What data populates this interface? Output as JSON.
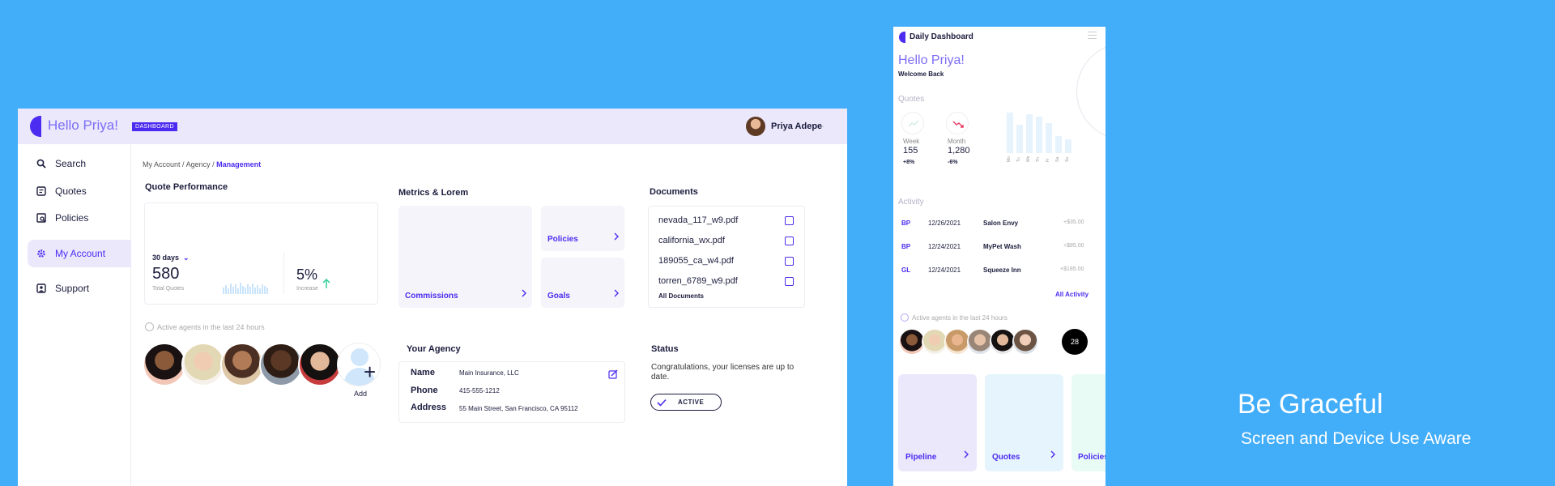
{
  "colors": {
    "background": "#42adf9",
    "accent": "#4b2cf0",
    "lavender": "#ebe8fc",
    "success": "#2ecf9a",
    "danger": "#e8365d"
  },
  "desktop": {
    "greeting": "Hello Priya!",
    "badge": "DASHBOARD",
    "user_name": "Priya Adepe",
    "nav": [
      {
        "label": "Search",
        "icon": "search-icon"
      },
      {
        "label": "Quotes",
        "icon": "document-icon"
      },
      {
        "label": "Policies",
        "icon": "policy-icon"
      },
      {
        "label": "My Account",
        "icon": "gear-icon",
        "active": true
      },
      {
        "label": "Support",
        "icon": "support-icon"
      }
    ],
    "breadcrumb": {
      "part1": "My Account",
      "part2": "Agency",
      "current": "Management",
      "sep": "/"
    },
    "quote_performance": {
      "title": "Quote Performance",
      "period": "30 days",
      "total": "580",
      "total_label": "Total Quotes",
      "increase": "5%",
      "increase_label": "Increase"
    },
    "metrics": {
      "title": "Metrics & Lorem",
      "tiles": [
        "Commissions",
        "Policies",
        "Goals"
      ]
    },
    "documents": {
      "title": "Documents",
      "files": [
        "nevada_117_w9.pdf",
        "california_wx.pdf",
        "189055_ca_w4.pdf",
        "torren_6789_w9.pdf"
      ],
      "all_label": "All Documents"
    },
    "active_agents_label": "Active agents in the last 24 hours",
    "add_label": "Add",
    "agency": {
      "title": "Your Agency",
      "rows": [
        {
          "k": "Name",
          "v": "Main Insurance, LLC"
        },
        {
          "k": "Phone",
          "v": "415-555-1212"
        },
        {
          "k": "Address",
          "v": "55 Main Street, San Francisco, CA 95112"
        }
      ]
    },
    "status": {
      "title": "Status",
      "message": "Congratulations, your licenses are up to date.",
      "badge": "ACTIVE"
    }
  },
  "mobile": {
    "title": "Daily Dashboard",
    "greeting": "Hello Priya!",
    "welcome": "Welcome Back",
    "quotes_title": "Quotes",
    "week": {
      "label": "Week",
      "value": "155",
      "change": "+8%"
    },
    "month": {
      "label": "Month",
      "value": "1,280",
      "change": "-6%"
    },
    "day_labels": [
      "Mo",
      "Tu",
      "We",
      "Th",
      "Fr",
      "Sa",
      "Su"
    ],
    "day_values": [
      0.9,
      0.62,
      0.85,
      0.8,
      0.66,
      0.38,
      0.3
    ],
    "activity_title": "Activity",
    "activity": [
      {
        "code": "BP",
        "date": "12/26/2021",
        "name": "Salon Envy",
        "amount": "+$35.00"
      },
      {
        "code": "BP",
        "date": "12/24/2021",
        "name": "MyPet Wash",
        "amount": "+$85.00"
      },
      {
        "code": "GL",
        "date": "12/24/2021",
        "name": "Squeeze Inn",
        "amount": "+$185.00"
      }
    ],
    "all_activity": "All Activity",
    "active_agents_label": "Active agents in the last 24 hours",
    "agent_count": "28",
    "tiles": [
      "Pipeline",
      "Quotes",
      "Policies"
    ]
  },
  "tagline": "Be Graceful",
  "subtagline": "Screen and Device Use Aware"
}
